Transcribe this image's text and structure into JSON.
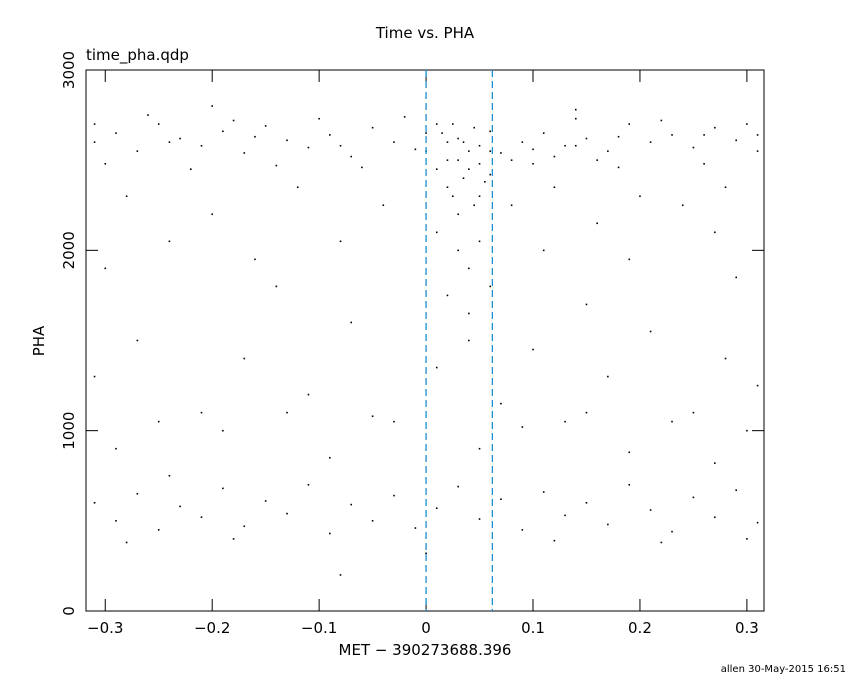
{
  "chart_data": {
    "type": "scatter",
    "title": "Time vs. PHA",
    "subtitle": "time_pha.qdp",
    "x_label": "MET − 390273688.396",
    "y_label": "PHA",
    "footer": "allen 30-May-2015 16:51",
    "xlim": [
      -0.318,
      0.316
    ],
    "ylim": [
      0,
      3000
    ],
    "xticks": [
      {
        "value": -0.3,
        "label": "−0.3"
      },
      {
        "value": -0.2,
        "label": "−0.2"
      },
      {
        "value": -0.1,
        "label": "−0.1"
      },
      0,
      0.1,
      0.2,
      0.3
    ],
    "yticks": [
      0,
      1000,
      2000,
      3000
    ],
    "vlines": [
      0,
      0.062
    ],
    "vline_color": "#1a8fd0",
    "series": [
      {
        "color": "#000000",
        "x": [
          -0.31,
          -0.29,
          -0.27,
          -0.25,
          -0.23,
          -0.21,
          -0.19,
          -0.17,
          -0.15,
          -0.13,
          -0.11,
          -0.09,
          -0.07,
          -0.05,
          -0.03,
          -0.01,
          0.01,
          0.02,
          0.03,
          0.04,
          0.05,
          0.06,
          0.07,
          0.09,
          0.11,
          0.13,
          0.15,
          0.17,
          0.19,
          0.21,
          0.23,
          0.25,
          0.27,
          0.29,
          0.31,
          -0.3,
          -0.26,
          -0.22,
          -0.18,
          -0.14,
          -0.1,
          -0.06,
          -0.02,
          0.02,
          0.06,
          0.1,
          0.14,
          0.18,
          0.22,
          0.26,
          0.3,
          -0.28,
          -0.2,
          -0.12,
          -0.04,
          0.03,
          0.05,
          0.08,
          0.12,
          0.16,
          0.2,
          0.24,
          0.28,
          -0.24,
          -0.16,
          -0.08,
          0.01,
          0.03,
          0.04,
          0.05,
          0.06,
          0.02,
          0.04,
          0.11,
          0.19,
          0.27,
          -0.3,
          -0.14,
          0.15,
          0.29,
          -0.31,
          -0.27,
          -0.21,
          -0.17,
          -0.11,
          -0.07,
          -0.03,
          0.01,
          0.04,
          0.07,
          0.1,
          0.13,
          0.17,
          0.21,
          0.25,
          0.28,
          0.31,
          -0.25,
          -0.19,
          -0.13,
          -0.05,
          0.09,
          0.15,
          0.23,
          0.3,
          -0.29,
          -0.09,
          0.05,
          0.19,
          0.27,
          -0.31,
          -0.29,
          -0.27,
          -0.25,
          -0.23,
          -0.21,
          -0.19,
          -0.17,
          -0.15,
          -0.13,
          -0.11,
          -0.09,
          -0.07,
          -0.05,
          -0.03,
          -0.01,
          0.01,
          0.03,
          0.05,
          0.07,
          0.09,
          0.11,
          0.13,
          0.15,
          0.17,
          0.19,
          0.21,
          0.23,
          0.25,
          0.27,
          0.29,
          0.31,
          -0.28,
          -0.18,
          -0.08,
          0.0,
          0.12,
          0.22,
          0.3,
          -0.24,
          0.0,
          0.01,
          0.02,
          0.025,
          0.03,
          0.035,
          0.04,
          0.045,
          0.05,
          0.055,
          0.015,
          0.025,
          0.035,
          0.045,
          0.06,
          0.08,
          0.1,
          0.12,
          0.14,
          0.16,
          -0.31,
          -0.24,
          -0.16,
          -0.08,
          0.0,
          0.18,
          0.26,
          0.31,
          -0.2,
          0.14
        ],
        "values": [
          2600,
          2650,
          2550,
          2700,
          2620,
          2580,
          2660,
          2540,
          2690,
          2610,
          2570,
          2640,
          2520,
          2680,
          2600,
          2560,
          2700,
          2500,
          2620,
          2450,
          2580,
          2660,
          2540,
          2600,
          2650,
          2580,
          2620,
          2550,
          2700,
          2600,
          2640,
          2570,
          2680,
          2610,
          2550,
          2480,
          2750,
          2450,
          2720,
          2470,
          2730,
          2460,
          2740,
          2350,
          2420,
          2480,
          2730,
          2460,
          2720,
          2480,
          2700,
          2300,
          2200,
          2350,
          2250,
          2200,
          2300,
          2250,
          2350,
          2150,
          2300,
          2250,
          2350,
          2050,
          1950,
          2050,
          2100,
          2000,
          1900,
          2050,
          1800,
          1750,
          1650,
          2000,
          1950,
          2100,
          1900,
          1800,
          1700,
          1850,
          1300,
          1500,
          1100,
          1400,
          1200,
          1600,
          1050,
          1350,
          1500,
          1150,
          1450,
          1050,
          1300,
          1550,
          1100,
          1400,
          1250,
          1050,
          1000,
          1100,
          1080,
          1020,
          1100,
          1050,
          1000,
          900,
          850,
          900,
          880,
          820,
          600,
          500,
          650,
          450,
          580,
          520,
          680,
          470,
          610,
          540,
          700,
          430,
          590,
          500,
          640,
          460,
          570,
          690,
          510,
          620,
          450,
          660,
          530,
          600,
          480,
          700,
          560,
          440,
          630,
          520,
          670,
          490,
          380,
          400,
          200,
          320,
          390,
          380,
          400,
          750,
          2550,
          2450,
          2600,
          2300,
          2500,
          2400,
          2550,
          2250,
          2480,
          2380,
          2650,
          2700,
          2600,
          2680,
          2550,
          2500,
          2560,
          2520,
          2580,
          2500,
          2700,
          2600,
          2630,
          2580,
          2650,
          2630,
          2640,
          2640,
          2800,
          2780
        ]
      }
    ]
  }
}
